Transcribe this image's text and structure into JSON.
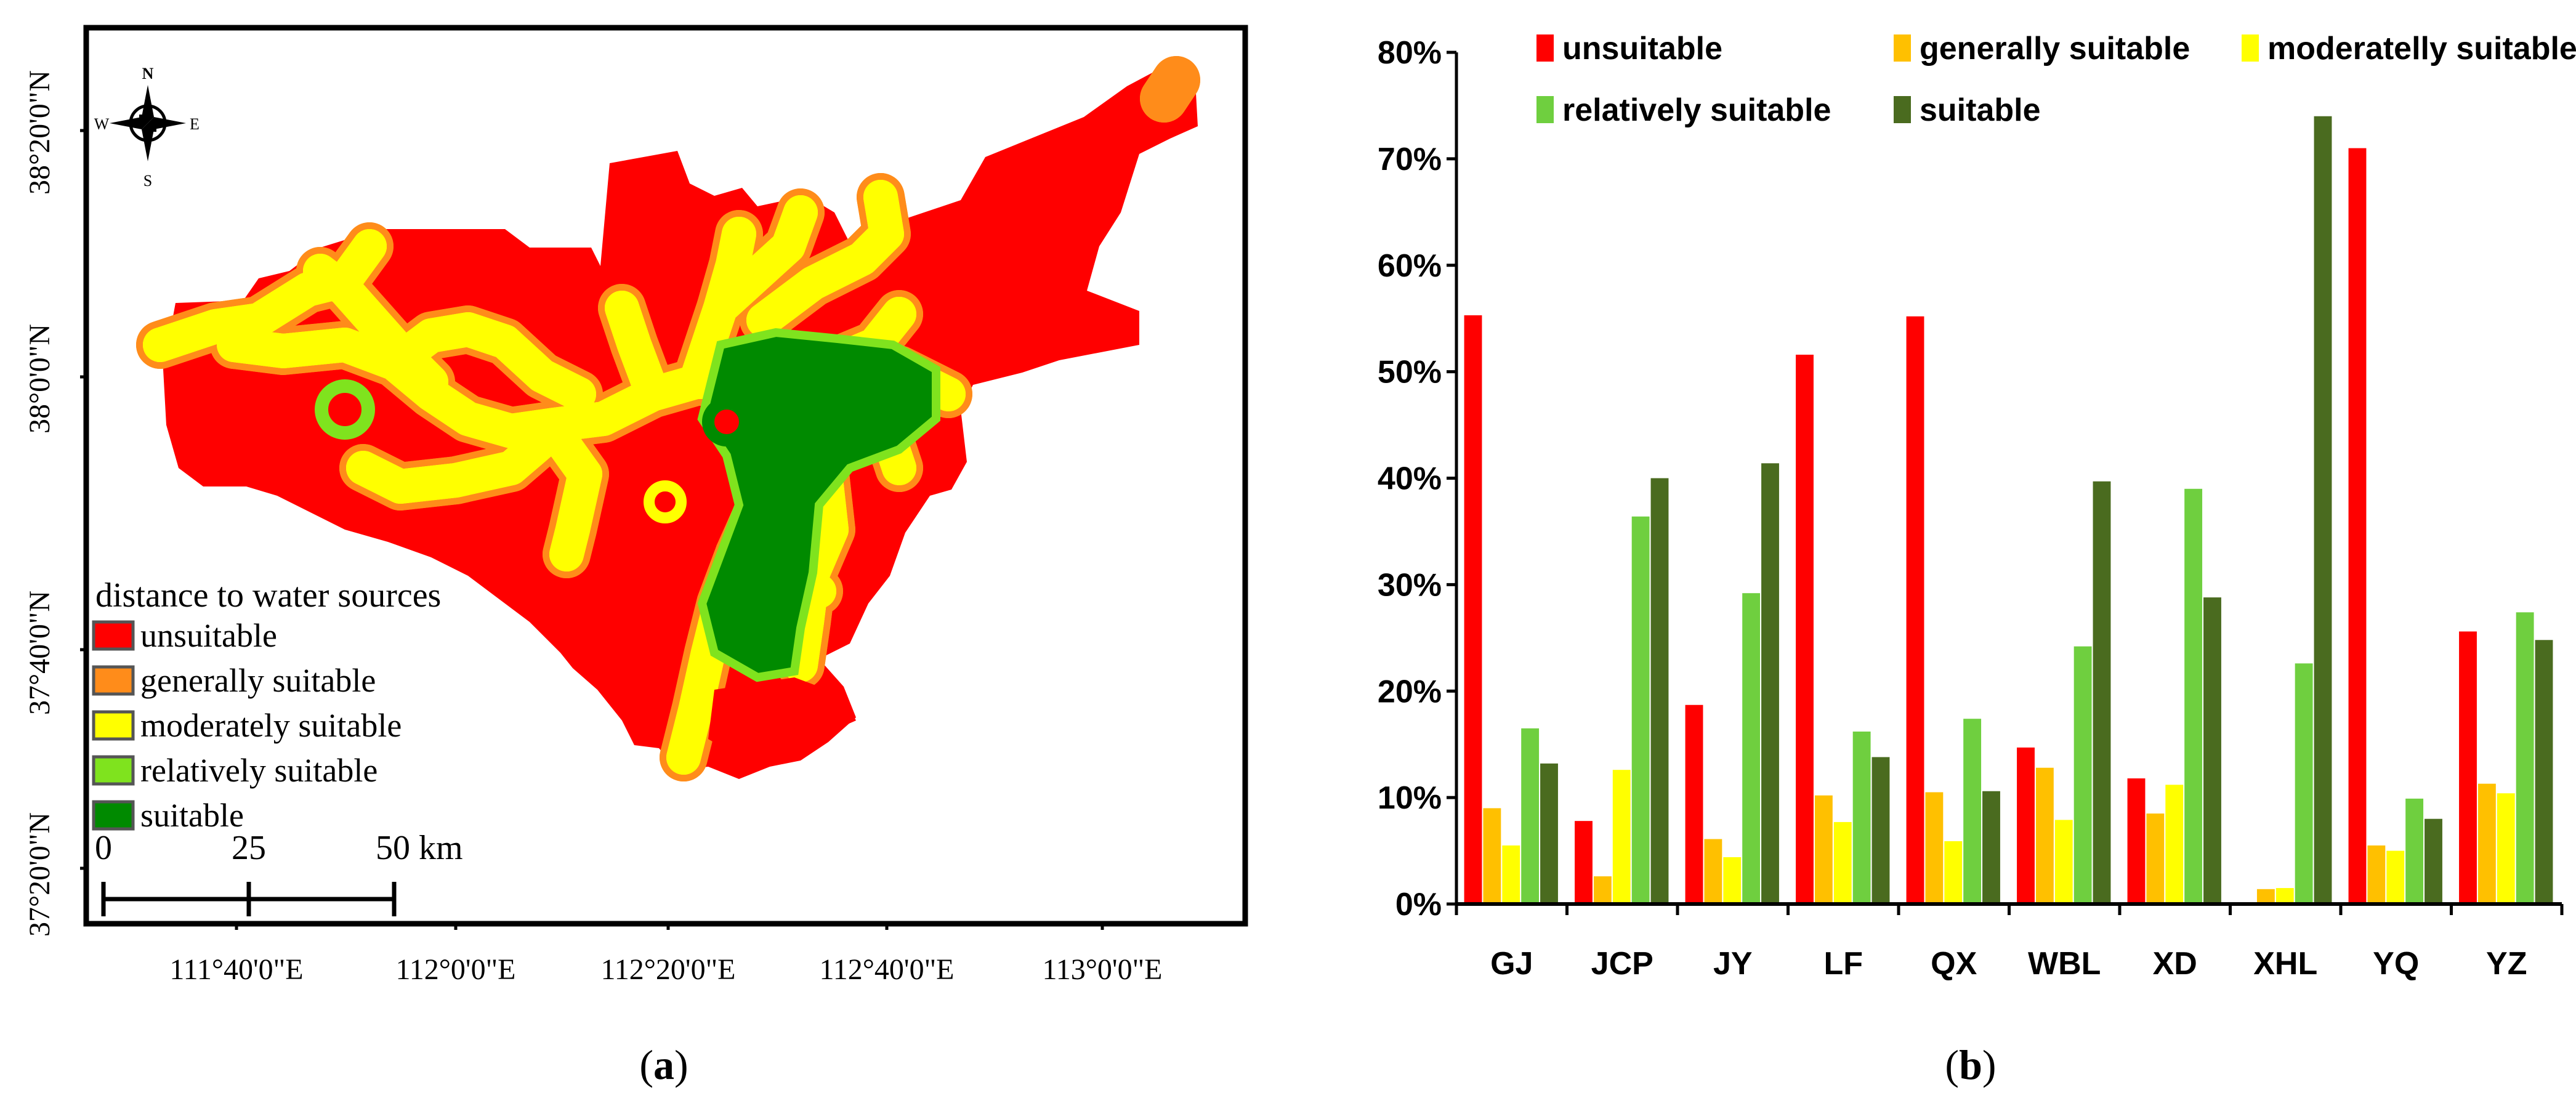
{
  "colors": {
    "unsuitable": "#ff0000",
    "generally_suitable": "#ff8c1a",
    "moderately_suitable": "#ffff00",
    "relatively_suitable": "#7fe31e",
    "suitable": "#008a00",
    "bar_unsuitable": "#ff0000",
    "bar_generally_suitable": "#ffc000",
    "bar_moderately_suitable": "#ffff00",
    "bar_relatively_suitable": "#6fcf3f",
    "bar_suitable": "#4a6b1f"
  },
  "map": {
    "panel_label": "a",
    "compass": {
      "n": "N",
      "s": "S",
      "w": "W",
      "e": "E",
      "icon": "compass-rose-icon"
    },
    "lat_labels": [
      "38°20'0\"N",
      "38°0'0\"N",
      "37°40'0\"N",
      "37°20'0\"N"
    ],
    "lon_labels": [
      "111°40'0\"E",
      "112°0'0\"E",
      "112°20'0\"E",
      "112°40'0\"E",
      "113°0'0\"E"
    ],
    "legend": {
      "title": "distance to water sources",
      "items": [
        {
          "label": "unsuitable",
          "color_key": "unsuitable"
        },
        {
          "label": "generally suitable",
          "color_key": "generally_suitable"
        },
        {
          "label": "moderately suitable",
          "color_key": "moderately_suitable"
        },
        {
          "label": "relatively suitable",
          "color_key": "relatively_suitable"
        },
        {
          "label": "suitable",
          "color_key": "suitable"
        }
      ]
    },
    "scale": {
      "labels": [
        "0",
        "25",
        "50 km"
      ]
    }
  },
  "chart_data": {
    "type": "bar",
    "panel_label": "b",
    "categories": [
      "GJ",
      "JCP",
      "JY",
      "LF",
      "QX",
      "WBL",
      "XD",
      "XHL",
      "YQ",
      "YZ"
    ],
    "ylim": [
      0,
      80
    ],
    "yticks": [
      "0%",
      "10%",
      "20%",
      "30%",
      "40%",
      "50%",
      "60%",
      "70%",
      "80%"
    ],
    "legend_placement": "top",
    "grid": false,
    "series": [
      {
        "name": "unsuitable",
        "color_key": "bar_unsuitable",
        "values": [
          55.3,
          7.8,
          18.7,
          51.6,
          55.2,
          14.7,
          11.8,
          0,
          71.0,
          25.6
        ]
      },
      {
        "name": "generally suitable",
        "color_key": "bar_generally_suitable",
        "values": [
          9.0,
          2.6,
          6.1,
          10.2,
          10.5,
          12.8,
          8.5,
          1.4,
          5.5,
          11.3
        ]
      },
      {
        "name": "moderatelly suitable",
        "color_key": "bar_moderately_suitable",
        "values": [
          5.5,
          12.6,
          4.4,
          7.7,
          5.9,
          7.9,
          11.2,
          1.5,
          5.0,
          10.4
        ]
      },
      {
        "name": "relatively suitable",
        "color_key": "bar_relatively_suitable",
        "values": [
          16.5,
          36.4,
          29.2,
          16.2,
          17.4,
          24.2,
          39.0,
          22.6,
          9.9,
          27.4
        ]
      },
      {
        "name": "suitable",
        "color_key": "bar_suitable",
        "values": [
          13.2,
          40.0,
          41.4,
          13.8,
          10.6,
          39.7,
          28.8,
          74.0,
          8.0,
          24.8
        ]
      }
    ]
  }
}
